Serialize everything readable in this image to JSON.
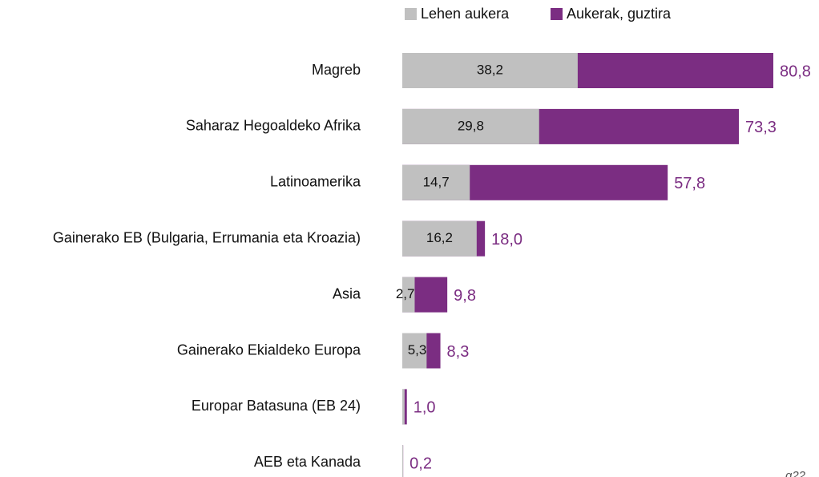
{
  "chart_data": {
    "type": "bar",
    "categories": [
      "Magreb",
      "Saharaz Hegoaldeko Afrika",
      "Latinoamerika",
      "Gainerako EB (Bulgaria, Errumania eta Kroazia)",
      "Asia",
      "Gainerako Ekialdeko Europa",
      "Europar Batasuna (EB 24)",
      "AEB eta Kanada"
    ],
    "series": [
      {
        "name": "Lehen aukera",
        "color": "#c0c0c0",
        "values": [
          38.2,
          29.8,
          14.7,
          16.2,
          2.7,
          5.3,
          0.5,
          0.1
        ],
        "value_labels": [
          "38,2",
          "29,8",
          "14,7",
          "16,2",
          "2,7",
          "5,3",
          null,
          null
        ]
      },
      {
        "name": "Aukerak, guztira",
        "color": "#7b2d82",
        "values": [
          80.8,
          73.3,
          57.8,
          18.0,
          9.8,
          8.3,
          1.0,
          0.2
        ],
        "value_labels": [
          "80,8",
          "73,3",
          "57,8",
          "18,0",
          "9,8",
          "8,3",
          "1,0",
          "0,2"
        ]
      }
    ],
    "legend": "top",
    "note": "g22"
  }
}
